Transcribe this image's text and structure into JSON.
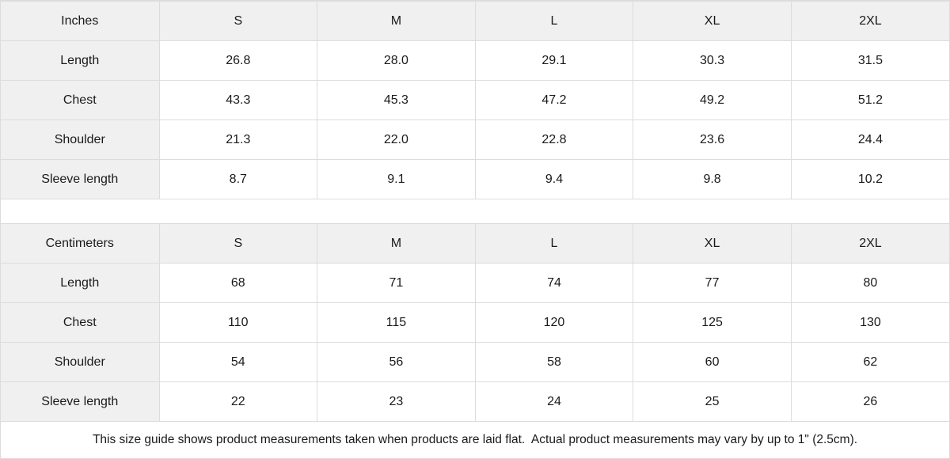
{
  "colors": {
    "header_bg": "#f0f0f0",
    "border": "#dcdcdc",
    "text": "#1a1a1a",
    "background": "#ffffff"
  },
  "footer": {
    "note": "This size guide shows product measurements taken when products are laid flat.  Actual product measurements may vary by up to 1\" (2.5cm)."
  },
  "chart_data": [
    {
      "type": "table",
      "title": "Inches",
      "columns": [
        "Inches",
        "S",
        "M",
        "L",
        "XL",
        "2XL"
      ],
      "rows": [
        {
          "label": "Length",
          "values": [
            "26.8",
            "28.0",
            "29.1",
            "30.3",
            "31.5"
          ]
        },
        {
          "label": "Chest",
          "values": [
            "43.3",
            "45.3",
            "47.2",
            "49.2",
            "51.2"
          ]
        },
        {
          "label": "Shoulder",
          "values": [
            "21.3",
            "22.0",
            "22.8",
            "23.6",
            "24.4"
          ]
        },
        {
          "label": "Sleeve length",
          "values": [
            "8.7",
            "9.1",
            "9.4",
            "9.8",
            "10.2"
          ]
        }
      ]
    },
    {
      "type": "table",
      "title": "Centimeters",
      "columns": [
        "Centimeters",
        "S",
        "M",
        "L",
        "XL",
        "2XL"
      ],
      "rows": [
        {
          "label": "Length",
          "values": [
            "68",
            "71",
            "74",
            "77",
            "80"
          ]
        },
        {
          "label": "Chest",
          "values": [
            "110",
            "115",
            "120",
            "125",
            "130"
          ]
        },
        {
          "label": "Shoulder",
          "values": [
            "54",
            "56",
            "58",
            "60",
            "62"
          ]
        },
        {
          "label": "Sleeve length",
          "values": [
            "22",
            "23",
            "24",
            "25",
            "26"
          ]
        }
      ]
    }
  ]
}
